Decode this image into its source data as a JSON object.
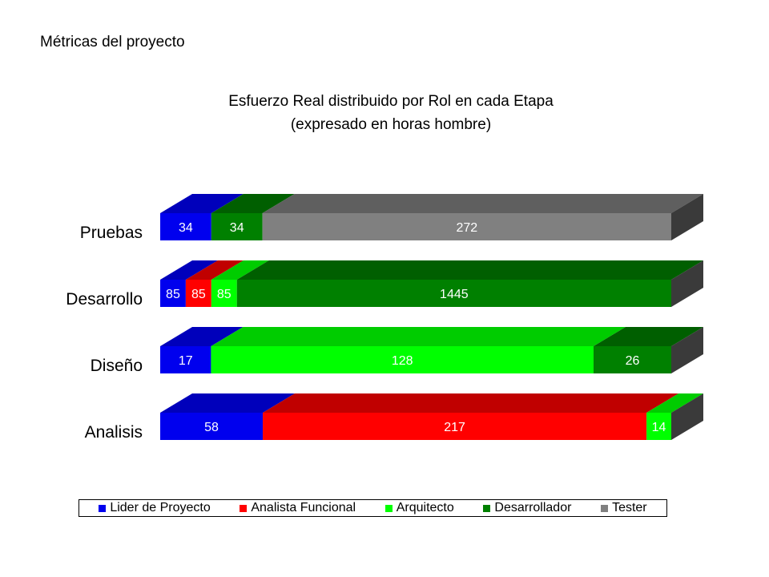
{
  "header": {
    "page_title": "Métricas del proyecto",
    "chart_title_line1": "Esfuerzo Real distribuido por Rol en cada Etapa",
    "chart_title_line2": "(expresado en horas hombre)"
  },
  "chart_data": {
    "type": "bar",
    "orientation": "horizontal",
    "stacking": "percent",
    "style": "3d",
    "title": "Esfuerzo Real distribuido por Rol en cada Etapa (expresado en horas hombre)",
    "categories": [
      "Pruebas",
      "Desarrollo",
      "Diseño",
      "Analisis"
    ],
    "series": [
      {
        "name": "Lider de Proyecto",
        "color": "#0000ee",
        "top_color": "#0000bb",
        "values": [
          34,
          85,
          17,
          58
        ]
      },
      {
        "name": "Analista Funcional",
        "color": "#ff0000",
        "top_color": "#c00000",
        "values": [
          0,
          85,
          0,
          217
        ]
      },
      {
        "name": "Arquitecto",
        "color": "#00ff00",
        "top_color": "#00cc00",
        "values": [
          0,
          85,
          128,
          14
        ]
      },
      {
        "name": "Desarrollador",
        "color": "#008000",
        "top_color": "#005f00",
        "values": [
          34,
          1445,
          26,
          0
        ]
      },
      {
        "name": "Tester",
        "color": "#808080",
        "top_color": "#5f5f5f",
        "values": [
          272,
          0,
          0,
          0
        ]
      }
    ],
    "side_color": "#3a3a3a",
    "legend_position": "bottom",
    "grid": false
  }
}
